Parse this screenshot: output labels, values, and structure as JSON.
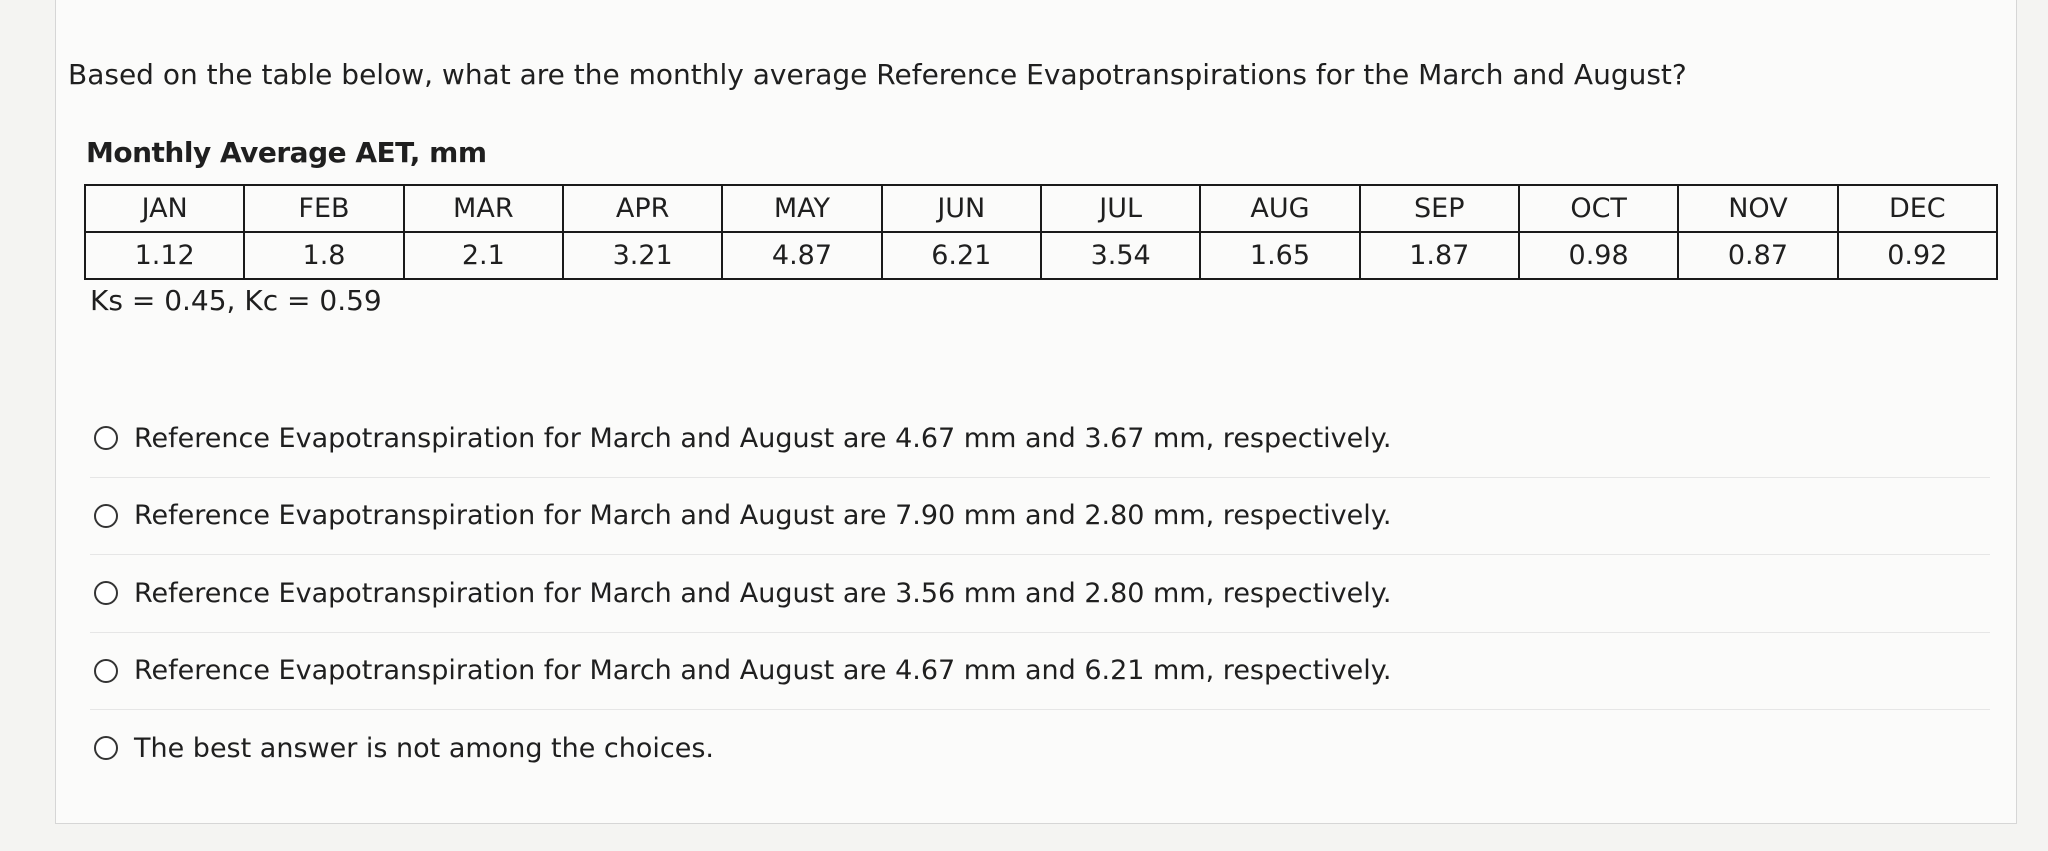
{
  "question": "Based on the table below, what are the monthly average Reference Evapotranspirations for the March and August?",
  "table": {
    "caption": "Monthly Average AET, mm",
    "header": [
      "JAN",
      "FEB",
      "MAR",
      "APR",
      "MAY",
      "JUN",
      "JUL",
      "AUG",
      "SEP",
      "OCT",
      "NOV",
      "DEC"
    ],
    "rows": [
      [
        "1.12",
        "1.8",
        "2.1",
        "3.21",
        "4.87",
        "6.21",
        "3.54",
        "1.65",
        "1.87",
        "0.98",
        "0.87",
        "0.92"
      ]
    ]
  },
  "note": "Ks = 0.45, Kc = 0.59",
  "options": [
    "Reference Evapotranspiration for March and August are 4.67 mm and 3.67 mm, respectively.",
    "Reference Evapotranspiration for March and August are 7.90 mm and 2.80 mm, respectively.",
    "Reference Evapotranspiration for March and August are 3.56 mm and 2.80 mm, respectively.",
    "Reference Evapotranspiration for March and August are 4.67 mm and 6.21 mm, respectively.",
    "The best answer is not among the choices."
  ]
}
